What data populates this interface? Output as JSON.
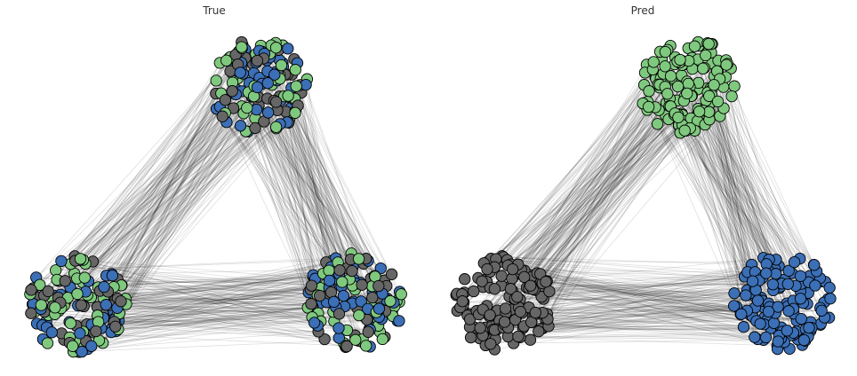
{
  "panels": [
    {
      "title": "True",
      "clusters": [
        {
          "name": "top",
          "mix": [
            "blue",
            "green",
            "gray"
          ]
        },
        {
          "name": "bottom-left",
          "mix": [
            "blue",
            "green",
            "gray"
          ]
        },
        {
          "name": "bottom-right",
          "mix": [
            "blue",
            "green",
            "gray"
          ]
        }
      ]
    },
    {
      "title": "Pred",
      "clusters": [
        {
          "name": "top",
          "mix": [
            "green"
          ]
        },
        {
          "name": "bottom-left",
          "mix": [
            "gray"
          ]
        },
        {
          "name": "bottom-right",
          "mix": [
            "blue"
          ]
        }
      ]
    }
  ],
  "colors": {
    "blue": "#3b6fb6",
    "green": "#7fc97f",
    "gray": "#666666",
    "edge": "#000000",
    "node_stroke": "#000000"
  }
}
